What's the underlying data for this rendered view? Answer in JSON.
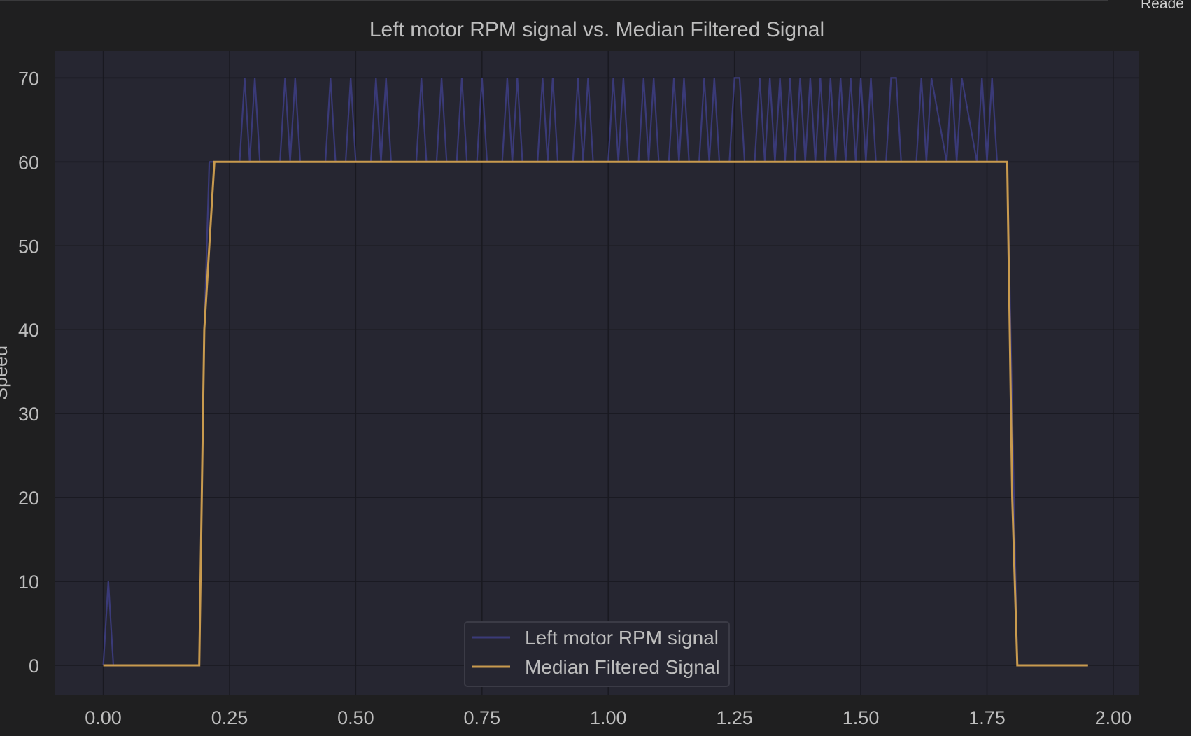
{
  "window": {
    "corner_text": "Reade"
  },
  "colors": {
    "background": "#1f1f20",
    "plot_area": "#262631",
    "grid": "#191920",
    "text": "#bdbdbd",
    "raw_series": "#3a3a78",
    "filtered_series": "#c89a4e"
  },
  "chart_data": {
    "type": "line",
    "title": "Left motor RPM signal vs. Median Filtered Signal",
    "xlabel": "",
    "ylabel": "Speed",
    "xlim": [
      -0.095,
      2.05
    ],
    "ylim": [
      -3.5,
      73.2
    ],
    "grid": true,
    "legend_position": "lower center",
    "x_ticks": [
      0.0,
      0.25,
      0.5,
      0.75,
      1.0,
      1.25,
      1.5,
      1.75,
      2.0
    ],
    "x_tick_labels": [
      "0.00",
      "0.25",
      "0.50",
      "0.75",
      "1.00",
      "1.25",
      "1.50",
      "1.75",
      "2.00"
    ],
    "y_ticks": [
      0,
      10,
      20,
      30,
      40,
      50,
      60,
      70
    ],
    "y_tick_labels": [
      "0",
      "10",
      "20",
      "30",
      "40",
      "50",
      "60",
      "70"
    ],
    "series": [
      {
        "name": "Left motor RPM signal",
        "color": "#3a3a78",
        "x": [
          0.0,
          0.01,
          0.02,
          0.03,
          0.19,
          0.2,
          0.21,
          0.22,
          0.27,
          0.28,
          0.29,
          0.3,
          0.31,
          0.35,
          0.36,
          0.37,
          0.38,
          0.39,
          0.44,
          0.45,
          0.46,
          0.48,
          0.49,
          0.5,
          0.53,
          0.54,
          0.55,
          0.56,
          0.57,
          0.58,
          0.62,
          0.63,
          0.64,
          0.66,
          0.67,
          0.68,
          0.7,
          0.71,
          0.72,
          0.74,
          0.75,
          0.76,
          0.79,
          0.8,
          0.81,
          0.82,
          0.83,
          0.84,
          0.86,
          0.87,
          0.88,
          0.89,
          0.9,
          0.91,
          0.93,
          0.94,
          0.95,
          0.96,
          0.97,
          0.98,
          1.0,
          1.01,
          1.02,
          1.03,
          1.04,
          1.06,
          1.07,
          1.08,
          1.09,
          1.1,
          1.12,
          1.13,
          1.14,
          1.15,
          1.16,
          1.18,
          1.19,
          1.2,
          1.21,
          1.22,
          1.24,
          1.25,
          1.26,
          1.27,
          1.29,
          1.3,
          1.31,
          1.32,
          1.33,
          1.34,
          1.35,
          1.36,
          1.37,
          1.38,
          1.39,
          1.4,
          1.41,
          1.42,
          1.43,
          1.44,
          1.45,
          1.46,
          1.47,
          1.48,
          1.49,
          1.5,
          1.51,
          1.52,
          1.53,
          1.55,
          1.56,
          1.57,
          1.58,
          1.61,
          1.62,
          1.63,
          1.64,
          1.67,
          1.68,
          1.69,
          1.7,
          1.73,
          1.74,
          1.75,
          1.76,
          1.77,
          1.79,
          1.81,
          1.95
        ],
        "y": [
          0,
          10,
          0,
          0,
          0,
          40,
          60,
          60,
          60,
          70,
          60,
          70,
          60,
          60,
          70,
          60,
          70,
          60,
          60,
          70,
          60,
          60,
          70,
          60,
          60,
          70,
          60,
          70,
          60,
          60,
          60,
          70,
          60,
          60,
          70,
          60,
          60,
          70,
          60,
          60,
          70,
          60,
          60,
          70,
          60,
          70,
          60,
          60,
          60,
          70,
          60,
          70,
          60,
          60,
          60,
          70,
          60,
          70,
          60,
          60,
          60,
          70,
          60,
          70,
          60,
          60,
          70,
          60,
          70,
          60,
          60,
          70,
          60,
          70,
          60,
          60,
          70,
          60,
          70,
          60,
          60,
          70,
          70,
          60,
          60,
          70,
          60,
          70,
          60,
          70,
          60,
          70,
          60,
          70,
          60,
          70,
          60,
          70,
          60,
          70,
          60,
          70,
          60,
          70,
          60,
          70,
          60,
          70,
          60,
          60,
          70,
          70,
          60,
          60,
          70,
          60,
          70,
          60,
          70,
          60,
          70,
          60,
          70,
          60,
          70,
          60,
          60,
          0,
          0
        ]
      },
      {
        "name": "Median Filtered Signal",
        "color": "#c89a4e",
        "x": [
          0.0,
          0.19,
          0.2,
          0.22,
          1.79,
          1.8,
          1.81,
          1.95
        ],
        "y": [
          0,
          0,
          40,
          60,
          60,
          20,
          0,
          0
        ]
      }
    ]
  }
}
